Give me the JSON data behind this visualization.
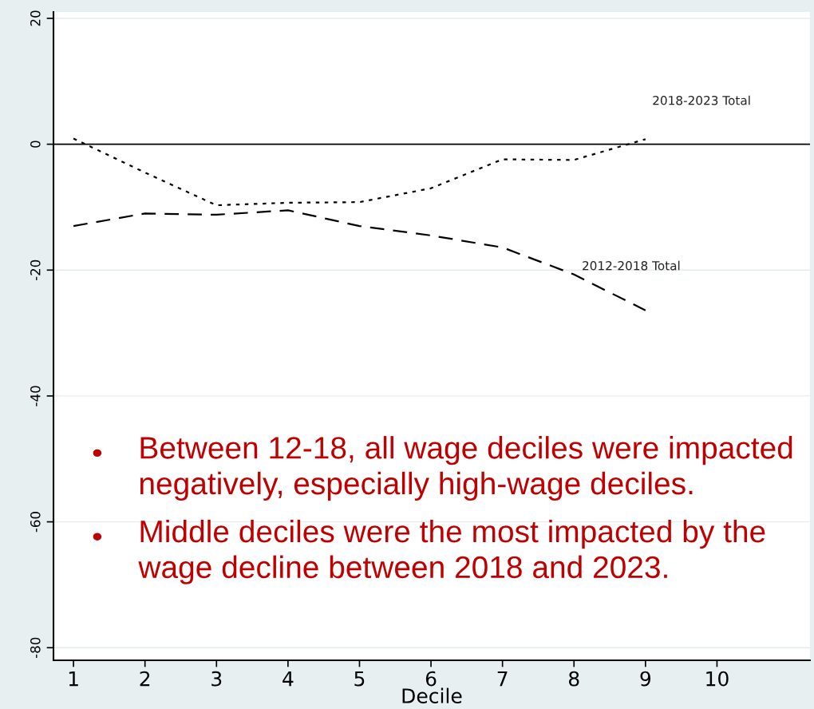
{
  "chart_data": {
    "type": "line",
    "xlabel": "Decile",
    "x": [
      1,
      2,
      3,
      4,
      5,
      6,
      7,
      8,
      9
    ],
    "series": [
      {
        "name": "2018-2023 Total",
        "color": "#000000",
        "line_style": "dotted",
        "values": [
          0.9,
          -4.5,
          -9.7,
          -9.3,
          -9.2,
          -7,
          -2.4,
          -2.5,
          0.8
        ]
      },
      {
        "name": "2012-2018 Total",
        "color": "#000000",
        "line_style": "dashed",
        "values": [
          -13,
          -11,
          -11.2,
          -10.5,
          -13,
          -14.5,
          -16.4,
          -20.7,
          -26.4
        ]
      }
    ],
    "xlim": [
      0.72,
      11.3
    ],
    "xticks": [
      1,
      2,
      3,
      4,
      5,
      6,
      7,
      8,
      9,
      10
    ],
    "ylim": [
      -82,
      21
    ],
    "yticks": [
      {
        "value": 20,
        "label": "20"
      },
      {
        "value": 0,
        "label": "0"
      },
      {
        "value": -20,
        "label": "-20"
      },
      {
        "value": -40,
        "label": "-40"
      },
      {
        "value": -60,
        "label": "-60"
      },
      {
        "value": -80,
        "label": "-80"
      }
    ],
    "grid": "y",
    "legend": false,
    "marker": "none",
    "ref_lines": [
      {
        "axis": "y",
        "value": 0,
        "color": "#000000",
        "line_style": "solid"
      }
    ],
    "annotations": [
      "Between 12-18, all wage deciles were impacted negatively, especially high-wage deciles.",
      "Middle deciles were the most impacted by the wage decline between 2018 and 2023."
    ]
  }
}
